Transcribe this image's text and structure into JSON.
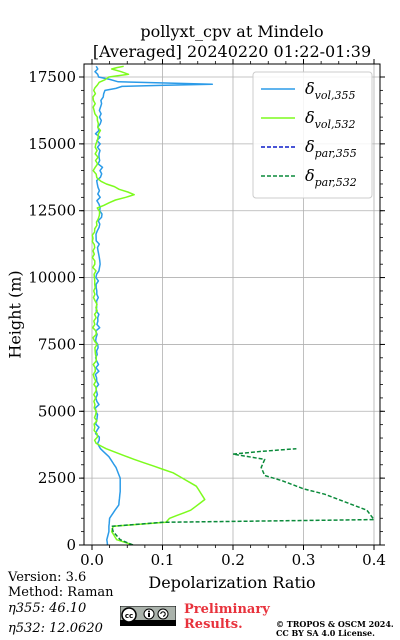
{
  "chart_data": {
    "type": "line",
    "title": "pollyxt_cpv at Mindelo",
    "subtitle": "[Averaged] 20240220 01:22-01:39",
    "xlabel": "Depolarization Ratio",
    "ylabel": "Height (m)",
    "xlim": [
      0,
      0.4
    ],
    "ylim": [
      0,
      18000
    ],
    "xticks": [
      "0.0",
      "0.1",
      "0.2",
      "0.3",
      "0.4"
    ],
    "yticks": [
      "0",
      "2500",
      "5000",
      "7500",
      "10000",
      "12500",
      "15000",
      "17500"
    ],
    "grid": true,
    "legend_position": "top-right",
    "series": [
      {
        "name": "δvol,355",
        "color": "#2b9be8",
        "dash": "solid",
        "points": [
          [
            0.022,
            0
          ],
          [
            0.021,
            200
          ],
          [
            0.024,
            500
          ],
          [
            0.024,
            700
          ],
          [
            0.025,
            1000
          ],
          [
            0.03,
            1200
          ],
          [
            0.038,
            1500
          ],
          [
            0.04,
            2000
          ],
          [
            0.04,
            2500
          ],
          [
            0.034,
            2900
          ],
          [
            0.024,
            3300
          ],
          [
            0.012,
            3600
          ],
          [
            0.008,
            3800
          ],
          [
            0.007,
            5000
          ],
          [
            0.008,
            6000
          ],
          [
            0.007,
            7000
          ],
          [
            0.008,
            8000
          ],
          [
            0.007,
            9000
          ],
          [
            0.008,
            10000
          ],
          [
            0.009,
            10500
          ],
          [
            0.007,
            11500
          ],
          [
            0.01,
            12000
          ],
          [
            0.012,
            12500
          ],
          [
            0.009,
            13000
          ],
          [
            0.008,
            13500
          ],
          [
            0.013,
            14000
          ],
          [
            0.009,
            14500
          ],
          [
            0.01,
            15000
          ],
          [
            0.007,
            15500
          ],
          [
            0.013,
            16000
          ],
          [
            0.014,
            16500
          ],
          [
            0.02,
            17000
          ],
          [
            0.045,
            17150
          ],
          [
            0.168,
            17230
          ],
          [
            0.04,
            17320
          ],
          [
            0.012,
            17500
          ],
          [
            0.005,
            17700
          ],
          [
            0.006,
            17900
          ]
        ]
      },
      {
        "name": "δvol,532",
        "color": "#7dfb1e",
        "dash": "solid",
        "points": [
          [
            0.058,
            0
          ],
          [
            0.035,
            200
          ],
          [
            0.028,
            500
          ],
          [
            0.03,
            700
          ],
          [
            0.105,
            850
          ],
          [
            0.11,
            1000
          ],
          [
            0.14,
            1300
          ],
          [
            0.16,
            1700
          ],
          [
            0.148,
            2200
          ],
          [
            0.115,
            2700
          ],
          [
            0.06,
            3200
          ],
          [
            0.02,
            3600
          ],
          [
            0.006,
            3800
          ],
          [
            0.005,
            5000
          ],
          [
            0.004,
            6000
          ],
          [
            0.005,
            7000
          ],
          [
            0.004,
            8000
          ],
          [
            0.005,
            9000
          ],
          [
            0.004,
            10000
          ],
          [
            0.003,
            11000
          ],
          [
            0.002,
            11700
          ],
          [
            0.008,
            12200
          ],
          [
            0.01,
            12600
          ],
          [
            0.022,
            12800
          ],
          [
            0.06,
            13100
          ],
          [
            0.03,
            13400
          ],
          [
            0.01,
            13600
          ],
          [
            0.004,
            14000
          ],
          [
            0.008,
            14500
          ],
          [
            0.006,
            15000
          ],
          [
            0.01,
            15500
          ],
          [
            0.006,
            16000
          ],
          [
            0.002,
            16500
          ],
          [
            0.003,
            17000
          ],
          [
            0.01,
            17300
          ],
          [
            0.025,
            17500
          ],
          [
            0.05,
            17600
          ],
          [
            0.03,
            17800
          ],
          [
            0.045,
            17900
          ]
        ]
      },
      {
        "name": "δpar,355",
        "color": "#0b1cc8",
        "dash": "dashed",
        "points": []
      },
      {
        "name": "δpar,532",
        "color": "#0a8a3a",
        "dash": "dashed",
        "points": [
          [
            0.058,
            0
          ],
          [
            0.04,
            200
          ],
          [
            0.03,
            500
          ],
          [
            0.028,
            700
          ],
          [
            0.1,
            850
          ],
          [
            0.4,
            950
          ],
          [
            0.39,
            1300
          ],
          [
            0.37,
            1500
          ],
          [
            0.33,
            1900
          ],
          [
            0.3,
            2100
          ],
          [
            0.27,
            2400
          ],
          [
            0.245,
            2600
          ],
          [
            0.24,
            2900
          ],
          [
            0.245,
            3200
          ],
          [
            0.2,
            3400
          ],
          [
            0.24,
            3500
          ],
          [
            0.29,
            3600
          ]
        ]
      }
    ]
  },
  "legend": [
    {
      "base": "δ",
      "sub": "vol,355"
    },
    {
      "base": "δ",
      "sub": "vol,532"
    },
    {
      "base": "δ",
      "sub": "par,355"
    },
    {
      "base": "δ",
      "sub": "par,532"
    }
  ],
  "footer": {
    "version": "Version: 3.6",
    "method": "Method: Raman",
    "eta355": "η355:  46.10",
    "eta532": "η532: 12.0620",
    "preliminary_line1": "Preliminary",
    "preliminary_line2": "Results.",
    "copyright_line1": "© TROPOS & OSCM 2024.",
    "copyright_line2": "CC BY SA 4.0 License."
  }
}
